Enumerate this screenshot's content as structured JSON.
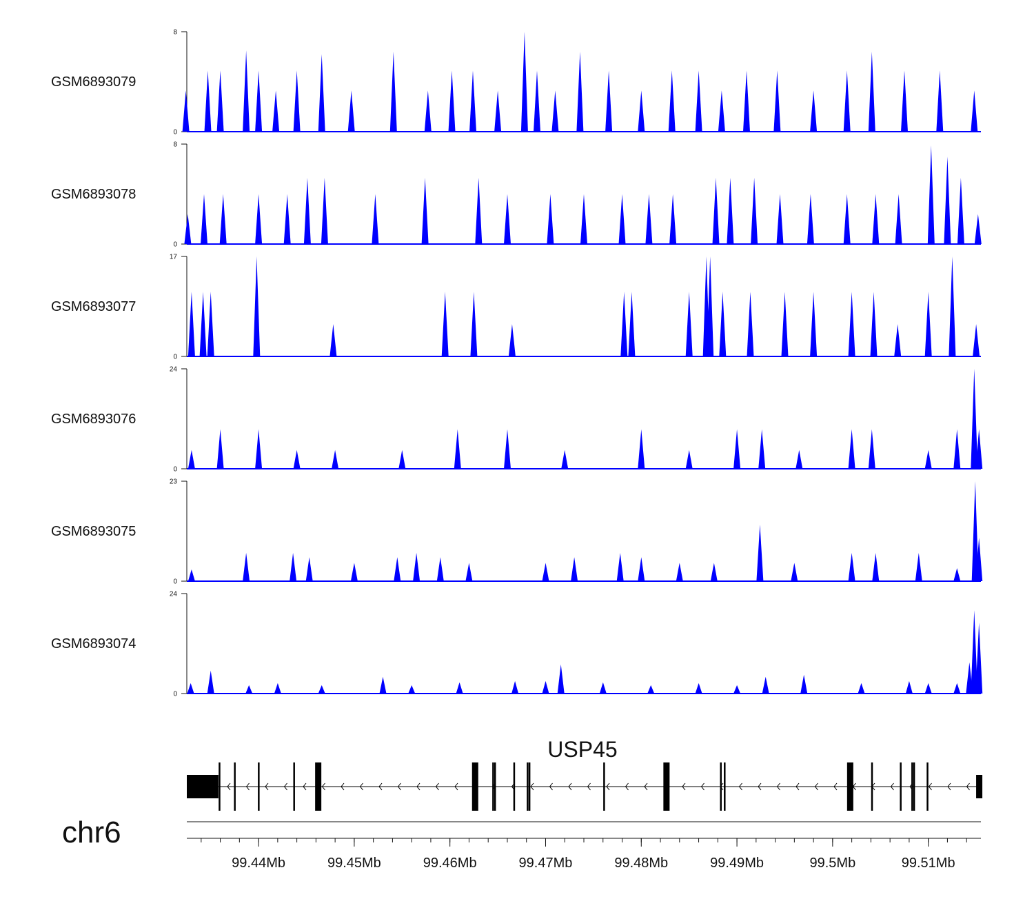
{
  "chart_data": {
    "type": "area",
    "title": "",
    "region": {
      "chrom": "chr6",
      "start_mb": 99.4325,
      "end_mb": 99.5155
    },
    "x_axis": {
      "label": "chr6",
      "ticks_mb": [
        99.44,
        99.45,
        99.46,
        99.47,
        99.48,
        99.49,
        99.5,
        99.51
      ],
      "tick_labels": [
        "99.44Mb",
        "99.45Mb",
        "99.46Mb",
        "99.47Mb",
        "99.48Mb",
        "99.49Mb",
        "99.5Mb",
        "99.51Mb"
      ],
      "minor_step_mb": 0.002
    },
    "fill_color": "#0000ff",
    "series": [
      {
        "name": "GSM6893079",
        "ylim": [
          0,
          8
        ],
        "y_tick_labels": [
          "0",
          "8"
        ],
        "peaks": [
          [
            99.4324,
            0,
            3.3
          ],
          [
            99.4347,
            0,
            4.9
          ],
          [
            99.436,
            0,
            4.9
          ],
          [
            99.4387,
            0,
            6.5
          ],
          [
            99.44,
            0,
            4.9
          ],
          [
            99.4418,
            0,
            3.3
          ],
          [
            99.444,
            0,
            4.9
          ],
          [
            99.4466,
            0,
            6.2
          ],
          [
            99.4497,
            0,
            3.3
          ],
          [
            99.4541,
            0,
            6.4
          ],
          [
            99.4577,
            0,
            3.3
          ],
          [
            99.4602,
            0,
            4.9
          ],
          [
            99.4624,
            0,
            4.9
          ],
          [
            99.465,
            0,
            3.3
          ],
          [
            99.4678,
            0,
            8.0
          ],
          [
            99.4691,
            0,
            4.9
          ],
          [
            99.471,
            0,
            3.3
          ],
          [
            99.4736,
            0,
            6.4
          ],
          [
            99.4766,
            0,
            4.9
          ],
          [
            99.48,
            0,
            3.3
          ],
          [
            99.4832,
            0,
            4.9
          ],
          [
            99.486,
            0,
            4.9
          ],
          [
            99.4884,
            0,
            3.3
          ],
          [
            99.491,
            0,
            4.9
          ],
          [
            99.4942,
            0,
            4.9
          ],
          [
            99.498,
            0,
            3.3
          ],
          [
            99.5015,
            0,
            4.9
          ],
          [
            99.5041,
            0,
            6.4
          ],
          [
            99.5075,
            0,
            4.9
          ],
          [
            99.5112,
            0,
            4.9
          ],
          [
            99.5148,
            0,
            3.3
          ]
        ]
      },
      {
        "name": "GSM6893078",
        "ylim": [
          0,
          8
        ],
        "y_tick_labels": [
          "0",
          "8"
        ],
        "peaks": [
          [
            99.4326,
            0,
            2.4
          ],
          [
            99.4343,
            0,
            4.0
          ],
          [
            99.4363,
            0,
            4.0
          ],
          [
            99.44,
            0,
            4.0
          ],
          [
            99.443,
            0,
            4.0
          ],
          [
            99.4451,
            0,
            5.3
          ],
          [
            99.4469,
            0,
            5.3
          ],
          [
            99.4522,
            0,
            4.0
          ],
          [
            99.4574,
            0,
            5.3
          ],
          [
            99.463,
            0,
            5.3
          ],
          [
            99.466,
            0,
            4.0
          ],
          [
            99.4705,
            0,
            4.0
          ],
          [
            99.474,
            0,
            4.0
          ],
          [
            99.478,
            0,
            4.0
          ],
          [
            99.4808,
            0,
            4.0
          ],
          [
            99.4833,
            0,
            4.0
          ],
          [
            99.4878,
            0,
            5.3
          ],
          [
            99.4893,
            0,
            5.3
          ],
          [
            99.4918,
            0,
            5.3
          ],
          [
            99.4945,
            0,
            4.0
          ],
          [
            99.4977,
            0,
            4.0
          ],
          [
            99.5015,
            0,
            4.0
          ],
          [
            99.5045,
            0,
            4.0
          ],
          [
            99.5069,
            0,
            4.0
          ],
          [
            99.5103,
            0,
            7.9
          ],
          [
            99.512,
            0,
            7.0
          ],
          [
            99.5134,
            0,
            5.3
          ],
          [
            99.5152,
            0,
            2.4
          ]
        ]
      },
      {
        "name": "GSM6893077",
        "ylim": [
          0,
          17
        ],
        "y_tick_labels": [
          "0",
          "17"
        ],
        "peaks": [
          [
            99.433,
            0,
            11.0
          ],
          [
            99.4342,
            0,
            11.0
          ],
          [
            99.435,
            0,
            11.0
          ],
          [
            99.4398,
            0,
            17.0
          ],
          [
            99.4478,
            0,
            5.5
          ],
          [
            99.4595,
            0,
            11.0
          ],
          [
            99.4625,
            0,
            11.0
          ],
          [
            99.4665,
            0,
            5.5
          ],
          [
            99.4782,
            0,
            11.0
          ],
          [
            99.479,
            0,
            11.0
          ],
          [
            99.485,
            0,
            11.0
          ],
          [
            99.4868,
            0,
            17.0
          ],
          [
            99.4872,
            0,
            17.0
          ],
          [
            99.4885,
            0,
            11.0
          ],
          [
            99.4914,
            0,
            11.0
          ],
          [
            99.495,
            0,
            11.0
          ],
          [
            99.498,
            0,
            11.0
          ],
          [
            99.502,
            0,
            11.0
          ],
          [
            99.5043,
            0,
            11.0
          ],
          [
            99.5068,
            0,
            5.5
          ],
          [
            99.51,
            0,
            11.0
          ],
          [
            99.5125,
            0,
            17.0
          ],
          [
            99.515,
            0,
            5.5
          ]
        ]
      },
      {
        "name": "GSM6893076",
        "ylim": [
          0,
          24
        ],
        "y_tick_labels": [
          "0",
          "24"
        ],
        "peaks": [
          [
            99.433,
            0,
            4.5
          ],
          [
            99.436,
            0,
            9.5
          ],
          [
            99.44,
            0,
            9.5
          ],
          [
            99.444,
            0,
            4.5
          ],
          [
            99.448,
            0,
            4.5
          ],
          [
            99.455,
            0,
            4.5
          ],
          [
            99.4608,
            0,
            9.5
          ],
          [
            99.466,
            0,
            9.5
          ],
          [
            99.472,
            0,
            4.5
          ],
          [
            99.48,
            0,
            9.5
          ],
          [
            99.485,
            0,
            4.5
          ],
          [
            99.49,
            0,
            9.5
          ],
          [
            99.4926,
            0,
            9.5
          ],
          [
            99.4965,
            0,
            4.5
          ],
          [
            99.502,
            0,
            9.5
          ],
          [
            99.5041,
            0,
            9.5
          ],
          [
            99.51,
            0,
            4.5
          ],
          [
            99.513,
            0,
            9.5
          ],
          [
            99.5148,
            0,
            24.0
          ],
          [
            99.5153,
            0,
            9.5
          ]
        ]
      },
      {
        "name": "GSM6893075",
        "ylim": [
          0,
          23
        ],
        "y_tick_labels": [
          "0",
          "23"
        ],
        "peaks": [
          [
            99.433,
            0,
            2.7
          ],
          [
            99.4387,
            0,
            6.5
          ],
          [
            99.4436,
            0,
            6.5
          ],
          [
            99.4453,
            0,
            5.5
          ],
          [
            99.45,
            0,
            4.2
          ],
          [
            99.4545,
            0,
            5.5
          ],
          [
            99.4565,
            0,
            6.5
          ],
          [
            99.459,
            0,
            5.5
          ],
          [
            99.462,
            0,
            4.2
          ],
          [
            99.47,
            0,
            4.2
          ],
          [
            99.473,
            0,
            5.5
          ],
          [
            99.4778,
            0,
            6.5
          ],
          [
            99.48,
            0,
            5.5
          ],
          [
            99.484,
            0,
            4.2
          ],
          [
            99.4876,
            0,
            4.2
          ],
          [
            99.4924,
            0,
            13.0
          ],
          [
            99.496,
            0,
            4.2
          ],
          [
            99.502,
            0,
            6.5
          ],
          [
            99.5045,
            0,
            6.5
          ],
          [
            99.509,
            0,
            6.5
          ],
          [
            99.513,
            0,
            3.0
          ],
          [
            99.5149,
            0,
            23.0
          ],
          [
            99.5153,
            0,
            10.0
          ]
        ]
      },
      {
        "name": "GSM6893074",
        "ylim": [
          0,
          24
        ],
        "y_tick_labels": [
          "0",
          "24"
        ],
        "peaks": [
          [
            99.4329,
            0,
            2.5
          ],
          [
            99.435,
            0,
            5.5
          ],
          [
            99.439,
            0,
            2.0
          ],
          [
            99.442,
            0,
            2.5
          ],
          [
            99.4466,
            0,
            2.0
          ],
          [
            99.453,
            0,
            4.0
          ],
          [
            99.456,
            0,
            2.0
          ],
          [
            99.461,
            0,
            2.7
          ],
          [
            99.4668,
            0,
            3.0
          ],
          [
            99.47,
            0,
            3.0
          ],
          [
            99.4716,
            0,
            7.0
          ],
          [
            99.476,
            0,
            2.7
          ],
          [
            99.481,
            0,
            2.0
          ],
          [
            99.486,
            0,
            2.5
          ],
          [
            99.49,
            0,
            2.0
          ],
          [
            99.493,
            0,
            4.0
          ],
          [
            99.497,
            0,
            4.5
          ],
          [
            99.503,
            0,
            2.5
          ],
          [
            99.508,
            0,
            3.0
          ],
          [
            99.51,
            0,
            2.5
          ],
          [
            99.513,
            0,
            2.5
          ],
          [
            99.5143,
            0,
            7.5
          ],
          [
            99.5148,
            0,
            20.0
          ],
          [
            99.5153,
            0,
            17.0
          ]
        ]
      }
    ],
    "gene_track": {
      "gene_name": "USP45",
      "strand": "-",
      "start_mb": 99.4325,
      "end_mb": 99.5155,
      "utr_blocks_mb": [
        [
          99.4325,
          99.4358
        ],
        [
          99.515,
          99.5155
        ]
      ],
      "exons_mb": [
        99.4359,
        99.4375,
        99.44,
        99.4437,
        99.4462,
        99.4626,
        99.4645,
        99.4647,
        99.4667,
        99.4681,
        99.4683,
        99.4761,
        99.4826,
        99.4883,
        99.4887,
        99.5018,
        99.5041,
        99.5071,
        99.5083,
        99.5085,
        99.5099
      ],
      "thick_exons_mb": [
        99.4462,
        99.4626,
        99.4826,
        99.5018
      ]
    }
  }
}
